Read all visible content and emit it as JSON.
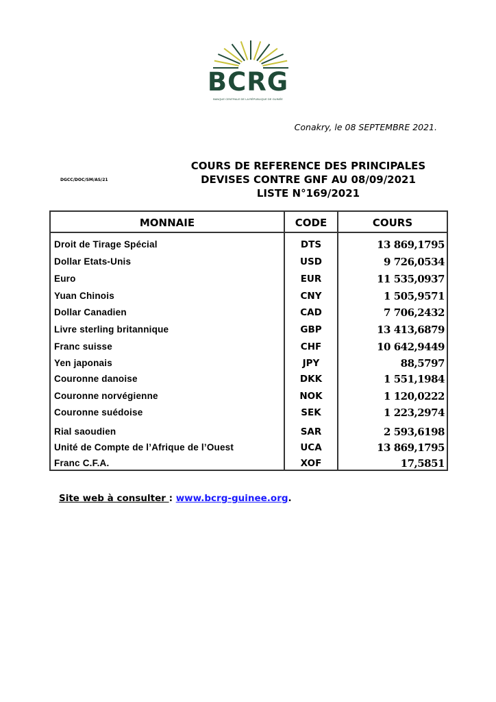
{
  "header": {
    "logo_text": "BCRG",
    "logo_subtitle": "BANQUE CENTRALE DE LA RÉPUBLIQUE DE GUINÉE",
    "logo_colors": {
      "green": "#1f4a37",
      "gold": "#c9c23a"
    },
    "date_line": "Conakry, le 08 SEPTEMBRE 2021.",
    "reference": "DGCC/DOC/SM/AS/21",
    "title_lines": [
      "COURS DE REFERENCE DES PRINCIPALES",
      "DEVISES CONTRE GNF AU 08/09/2021",
      "LISTE N°169/2021"
    ]
  },
  "table": {
    "headers": {
      "currency": "MONNAIE",
      "code": "CODE",
      "rate": "COURS"
    },
    "rows": [
      {
        "name": "Droit de Tirage Spécial",
        "code": "DTS",
        "rate": "13 869,1795"
      },
      {
        "name": "Dollar Etats-Unis",
        "code": "USD",
        "rate": "9 726,0534"
      },
      {
        "name": "Euro",
        "code": "EUR",
        "rate": "11 535,0937"
      },
      {
        "name": "Yuan Chinois",
        "code": "CNY",
        "rate": "1 505,9571"
      },
      {
        "name": "Dollar Canadien",
        "code": "CAD",
        "rate": "7 706,2432"
      },
      {
        "name": "Livre sterling britannique",
        "code": "GBP",
        "rate": "13 413,6879"
      },
      {
        "name": "Franc suisse",
        "code": "CHF",
        "rate": "10 642,9449"
      },
      {
        "name": "Yen japonais",
        "code": "JPY",
        "rate": "88,5797"
      },
      {
        "name": "Couronne danoise",
        "code": "DKK",
        "rate": "1 551,1984"
      },
      {
        "name": "Couronne norvégienne",
        "code": "NOK",
        "rate": "1 120,0222"
      },
      {
        "name": "Couronne suédoise",
        "code": "SEK",
        "rate": "1 223,2974"
      },
      {
        "name": "Rial saoudien",
        "code": "SAR",
        "rate": "2 593,6198"
      },
      {
        "name": "Unité de Compte de l’Afrique de l’Ouest",
        "code": "UCA",
        "rate": "13 869,1795"
      },
      {
        "name": "Franc C.F.A.",
        "code": "XOF",
        "rate": "17,5851"
      }
    ]
  },
  "footer": {
    "site_label": "Site web à consulter ",
    "separator": ": ",
    "site_link": "www.bcrg-guinee.org",
    "end": "."
  }
}
